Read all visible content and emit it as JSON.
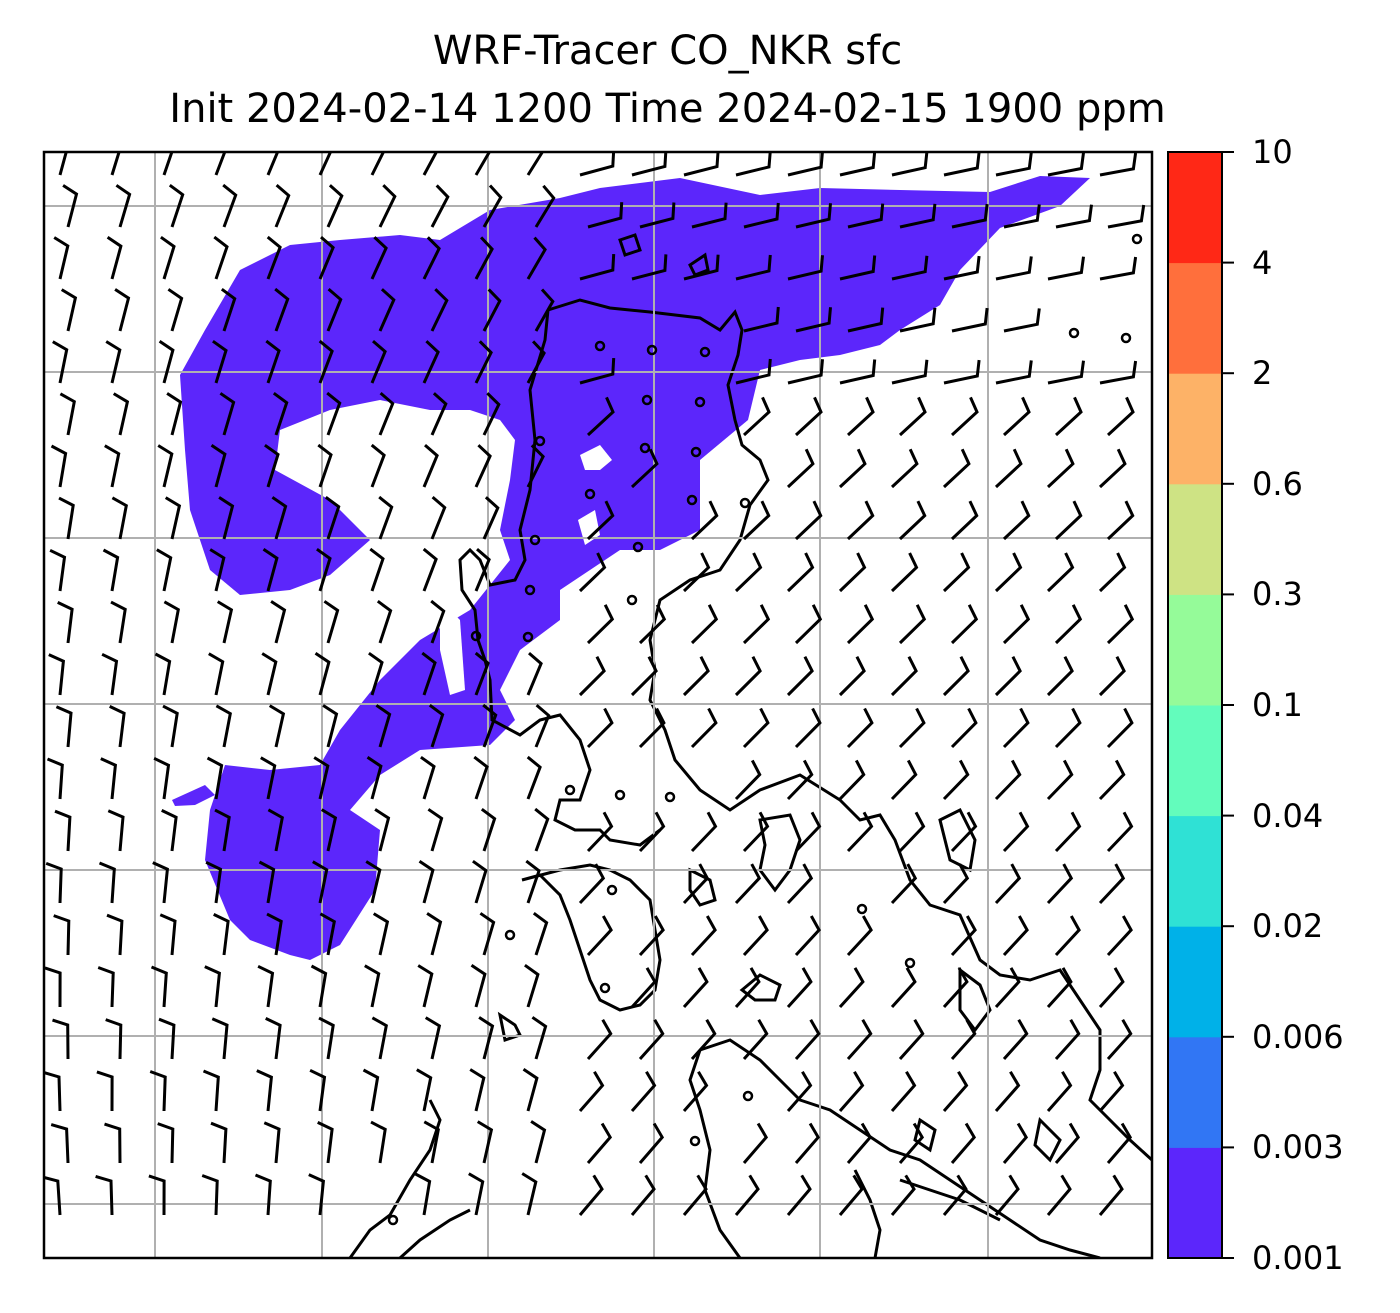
{
  "title": {
    "line1": "WRF-Tracer CO_NKR sfc",
    "line2": "Init 2024-02-14 1200 Time 2024-02-15 1900 ppm"
  },
  "colorbar": {
    "labels": [
      "0.001",
      "0.003",
      "0.006",
      "0.02",
      "0.04",
      "0.1",
      "0.3",
      "0.6",
      "2",
      "4",
      "10"
    ],
    "colors": [
      "#5c26fb",
      "#3176f4",
      "#00b1e8",
      "#2fe1d5",
      "#63fcbc",
      "#95fb99",
      "#cee384",
      "#fdb267",
      "#ff6f3c",
      "#ff2816"
    ]
  },
  "map": {
    "plume_color": "#5c26fb",
    "grid_color": "#b0b0b0",
    "coastline_color": "#000000",
    "background": "#ffffff"
  }
}
